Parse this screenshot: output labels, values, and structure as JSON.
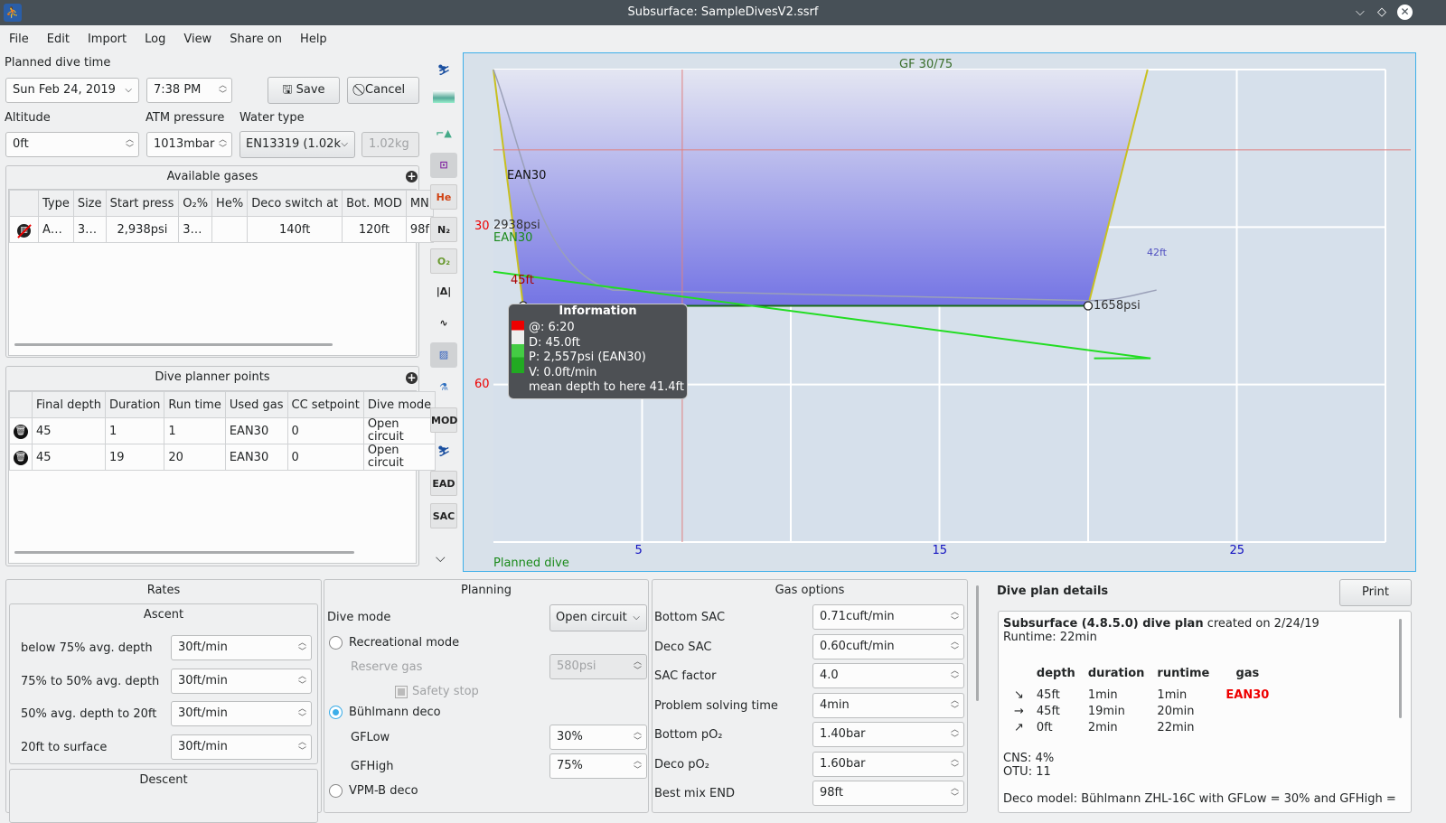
{
  "window": {
    "title": "Subsurface: SampleDivesV2.ssrf"
  },
  "menu": [
    "File",
    "Edit",
    "Import",
    "Log",
    "View",
    "Share on",
    "Help"
  ],
  "planned": {
    "label": "Planned dive time",
    "date": "Sun Feb 24, 2019",
    "time": "7:38 PM",
    "save": "Save",
    "cancel": "Cancel"
  },
  "env": {
    "altitude_label": "Altitude",
    "altitude": "0ft",
    "atm_label": "ATM pressure",
    "atm": "1013mbar",
    "water_label": "Water type",
    "water": "EN13319 (1.02k",
    "density": "1.02kg"
  },
  "gases": {
    "title": "Available gases",
    "headers": [
      "Type",
      "Size",
      "Start press",
      "O₂%",
      "He%",
      "Deco switch at",
      "Bot. MOD",
      "MN"
    ],
    "rows": [
      [
        "A…",
        "3…",
        "2,938psi",
        "3…",
        "",
        "140ft",
        "120ft",
        "98f"
      ]
    ]
  },
  "points": {
    "title": "Dive planner points",
    "headers": [
      "Final depth",
      "Duration",
      "Run time",
      "Used gas",
      "CC setpoint",
      "Dive mode"
    ],
    "rows": [
      [
        "45",
        "1",
        "1",
        "EAN30",
        "0",
        "Open circuit"
      ],
      [
        "45",
        "19",
        "20",
        "EAN30",
        "0",
        "Open circuit"
      ]
    ]
  },
  "toolbar": [
    "profile-icon",
    "ceiling-icon",
    "deco-icon",
    "planner-icon",
    "He",
    "N₂",
    "O₂",
    "ruler-icon",
    "gradient-icon",
    "photo-icon",
    "heatmap-icon",
    "MOD",
    "tissue-icon",
    "EAD",
    "SAC"
  ],
  "profile": {
    "gf": "GF 30/75",
    "footer": "Planned dive",
    "x_ticks": [
      5,
      15,
      25
    ],
    "y_ticks": [
      30,
      60
    ],
    "x_max": 30,
    "y_max": 90,
    "depth_points": [
      [
        0,
        0
      ],
      [
        1,
        45
      ],
      [
        20,
        45
      ],
      [
        22,
        0
      ]
    ],
    "pressure": {
      "start": "2938psi",
      "end": "1658psi",
      "gas": "EAN30"
    },
    "labels": {
      "gas": "EAN30",
      "max_depth": "45ft",
      "ceiling": "42ft"
    },
    "colors": {
      "depth_fill": "#7b7be6",
      "gas_line": "#22dd22",
      "grid": "#ffffff",
      "bg": "#d8e1ea"
    }
  },
  "tooltip": {
    "title": "Information",
    "lines": [
      "@: 6:20",
      "D: 45.0ft",
      "P: 2,557psi (EAN30)",
      "V: 0.0ft/min",
      "mean depth to here 41.4ft"
    ]
  },
  "rates": {
    "title": "Rates",
    "ascent": "Ascent",
    "rows": [
      [
        "below 75% avg. depth",
        "30ft/min"
      ],
      [
        "75% to 50% avg. depth",
        "30ft/min"
      ],
      [
        "50% avg. depth to 20ft",
        "30ft/min"
      ],
      [
        "20ft to surface",
        "30ft/min"
      ]
    ],
    "descent": "Descent"
  },
  "planning": {
    "title": "Planning",
    "dive_mode_label": "Dive mode",
    "dive_mode": "Open circuit",
    "recreational": "Recreational mode",
    "reserve_label": "Reserve gas",
    "reserve": "580psi",
    "safety": "Safety stop",
    "buhlmann": "Bühlmann deco",
    "gflow_label": "GFLow",
    "gflow": "30%",
    "gfhigh_label": "GFHigh",
    "gfhigh": "75%",
    "vpm": "VPM-B deco"
  },
  "gasopts": {
    "title": "Gas options",
    "rows": [
      [
        "Bottom SAC",
        "0.71cuft/min"
      ],
      [
        "Deco SAC",
        "0.60cuft/min"
      ],
      [
        "SAC factor",
        "4.0"
      ],
      [
        "Problem solving time",
        "4min"
      ],
      [
        "Bottom pO₂",
        "1.40bar"
      ],
      [
        "Deco pO₂",
        "1.60bar"
      ],
      [
        "Best mix END",
        "98ft"
      ]
    ]
  },
  "details": {
    "title": "Dive plan details",
    "print": "Print",
    "head_bold": "Subsurface (4.8.5.0) dive plan",
    "head_rest": " created on 2/24/19",
    "runtime": "Runtime: 22min",
    "cols": [
      "depth",
      "duration",
      "runtime",
      "gas"
    ],
    "rows": [
      [
        "↘",
        "45ft",
        "1min",
        "1min",
        "EAN30"
      ],
      [
        "→",
        "45ft",
        "19min",
        "20min",
        ""
      ],
      [
        "↗",
        "0ft",
        "2min",
        "22min",
        ""
      ]
    ],
    "cns": "CNS: 4%",
    "otu": "OTU: 11",
    "model": "Deco model: Bühlmann ZHL-16C with GFLow = 30% and GFHigh ="
  }
}
